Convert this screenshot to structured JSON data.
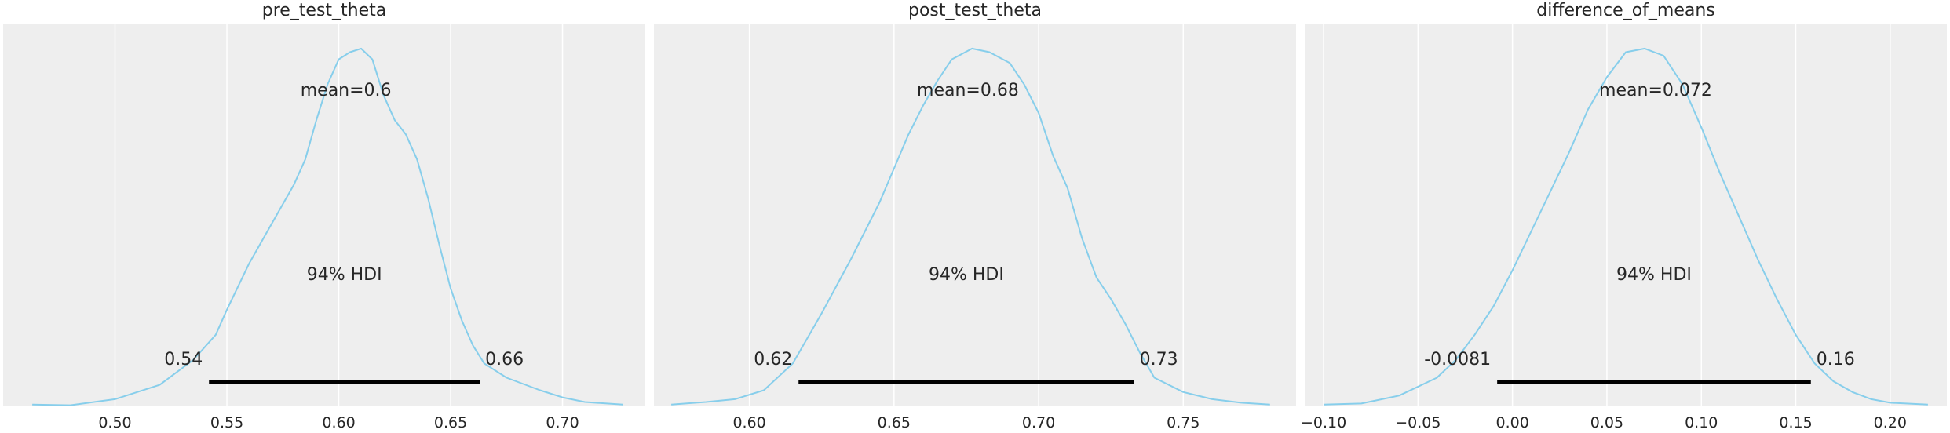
{
  "chart_data": [
    {
      "type": "density",
      "title": "pre_test_theta",
      "mean_label": "mean=0.6",
      "hdi_label": "94% HDI",
      "hdi_low": 0.542,
      "hdi_high": 0.663,
      "hdi_low_label": "0.54",
      "hdi_high_label": "0.66",
      "xlim": [
        0.45,
        0.737
      ],
      "ylim": [
        0,
        1.07
      ],
      "xticks": [
        0.5,
        0.55,
        0.6,
        0.65,
        0.7
      ],
      "xtick_labels": [
        "0.50",
        "0.55",
        "0.60",
        "0.65",
        "0.70"
      ],
      "grid": true,
      "color": "#87ceeb",
      "curve": [
        [
          0.463,
          0.005
        ],
        [
          0.48,
          0.003
        ],
        [
          0.5,
          0.02
        ],
        [
          0.52,
          0.06
        ],
        [
          0.535,
          0.13
        ],
        [
          0.545,
          0.2
        ],
        [
          0.55,
          0.27
        ],
        [
          0.56,
          0.4
        ],
        [
          0.57,
          0.51
        ],
        [
          0.58,
          0.62
        ],
        [
          0.585,
          0.69
        ],
        [
          0.59,
          0.8
        ],
        [
          0.595,
          0.9
        ],
        [
          0.6,
          0.97
        ],
        [
          0.605,
          0.99
        ],
        [
          0.61,
          1.0
        ],
        [
          0.615,
          0.97
        ],
        [
          0.62,
          0.87
        ],
        [
          0.625,
          0.8
        ],
        [
          0.63,
          0.76
        ],
        [
          0.635,
          0.69
        ],
        [
          0.64,
          0.58
        ],
        [
          0.645,
          0.45
        ],
        [
          0.65,
          0.33
        ],
        [
          0.655,
          0.24
        ],
        [
          0.66,
          0.17
        ],
        [
          0.665,
          0.12
        ],
        [
          0.675,
          0.08
        ],
        [
          0.69,
          0.045
        ],
        [
          0.7,
          0.025
        ],
        [
          0.71,
          0.012
        ],
        [
          0.727,
          0.005
        ]
      ]
    },
    {
      "type": "density",
      "title": "post_test_theta",
      "mean_label": "mean=0.68",
      "hdi_label": "94% HDI",
      "hdi_low": 0.617,
      "hdi_high": 0.733,
      "hdi_low_label": "0.62",
      "hdi_high_label": "0.73",
      "xlim": [
        0.567,
        0.789
      ],
      "ylim": [
        0,
        1.07
      ],
      "xticks": [
        0.6,
        0.65,
        0.7,
        0.75
      ],
      "xtick_labels": [
        "0.60",
        "0.65",
        "0.70",
        "0.75"
      ],
      "grid": true,
      "color": "#87ceeb",
      "curve": [
        [
          0.573,
          0.005
        ],
        [
          0.585,
          0.012
        ],
        [
          0.595,
          0.02
        ],
        [
          0.605,
          0.045
        ],
        [
          0.615,
          0.12
        ],
        [
          0.625,
          0.26
        ],
        [
          0.635,
          0.41
        ],
        [
          0.645,
          0.57
        ],
        [
          0.655,
          0.76
        ],
        [
          0.66,
          0.84
        ],
        [
          0.665,
          0.91
        ],
        [
          0.67,
          0.97
        ],
        [
          0.677,
          1.0
        ],
        [
          0.683,
          0.99
        ],
        [
          0.69,
          0.96
        ],
        [
          0.695,
          0.9
        ],
        [
          0.7,
          0.82
        ],
        [
          0.705,
          0.7
        ],
        [
          0.71,
          0.61
        ],
        [
          0.715,
          0.47
        ],
        [
          0.72,
          0.36
        ],
        [
          0.725,
          0.3
        ],
        [
          0.73,
          0.23
        ],
        [
          0.735,
          0.15
        ],
        [
          0.74,
          0.08
        ],
        [
          0.75,
          0.04
        ],
        [
          0.76,
          0.02
        ],
        [
          0.77,
          0.01
        ],
        [
          0.78,
          0.005
        ]
      ]
    },
    {
      "type": "density",
      "title": "difference_of_means",
      "mean_label": "mean=0.072",
      "hdi_label": "94% HDI",
      "hdi_low": -0.0081,
      "hdi_high": 0.158,
      "hdi_low_label": "-0.0081",
      "hdi_high_label": "0.16",
      "xlim": [
        -0.11,
        0.23
      ],
      "ylim": [
        0,
        1.07
      ],
      "xticks": [
        -0.1,
        -0.05,
        0.0,
        0.05,
        0.1,
        0.15,
        0.2
      ],
      "xtick_labels": [
        "−0.10",
        "−0.05",
        "0.00",
        "0.05",
        "0.10",
        "0.15",
        "0.20"
      ],
      "grid": true,
      "color": "#87ceeb",
      "curve": [
        [
          -0.1,
          0.005
        ],
        [
          -0.08,
          0.008
        ],
        [
          -0.06,
          0.03
        ],
        [
          -0.04,
          0.08
        ],
        [
          -0.03,
          0.13
        ],
        [
          -0.02,
          0.2
        ],
        [
          -0.01,
          0.28
        ],
        [
          0.0,
          0.38
        ],
        [
          0.01,
          0.49
        ],
        [
          0.02,
          0.6
        ],
        [
          0.03,
          0.71
        ],
        [
          0.04,
          0.83
        ],
        [
          0.05,
          0.92
        ],
        [
          0.06,
          0.99
        ],
        [
          0.07,
          1.0
        ],
        [
          0.08,
          0.98
        ],
        [
          0.09,
          0.9
        ],
        [
          0.1,
          0.78
        ],
        [
          0.11,
          0.65
        ],
        [
          0.12,
          0.53
        ],
        [
          0.13,
          0.41
        ],
        [
          0.14,
          0.3
        ],
        [
          0.15,
          0.2
        ],
        [
          0.16,
          0.12
        ],
        [
          0.17,
          0.07
        ],
        [
          0.18,
          0.04
        ],
        [
          0.19,
          0.02
        ],
        [
          0.2,
          0.01
        ],
        [
          0.22,
          0.005
        ]
      ]
    }
  ]
}
